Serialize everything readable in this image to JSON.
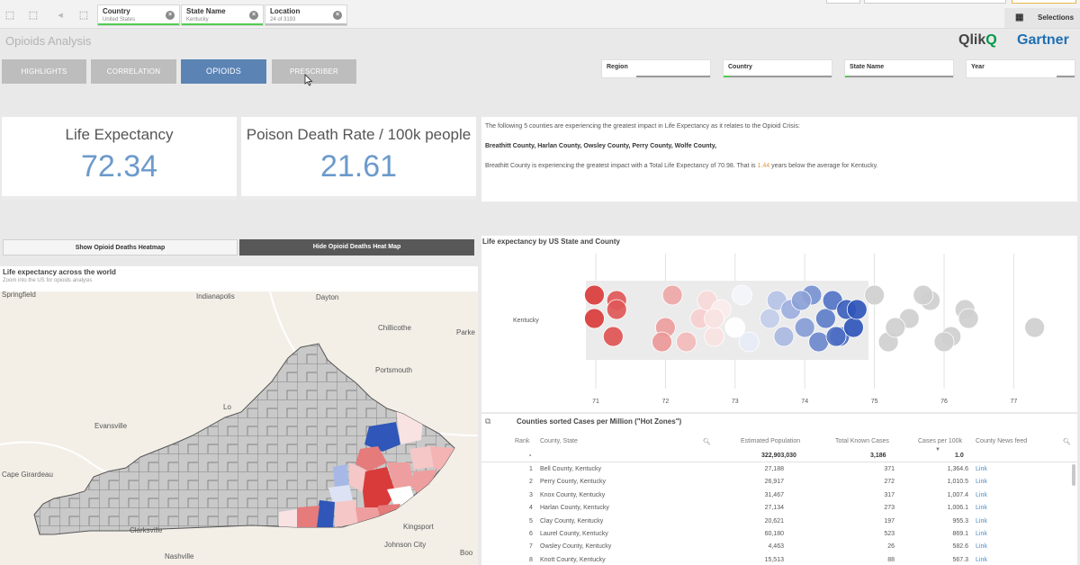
{
  "toolbar": {
    "filters": [
      {
        "label": "Country",
        "value": "United States"
      },
      {
        "label": "State Name",
        "value": "Kentucky"
      },
      {
        "label": "Location",
        "value": "24 of 3193"
      }
    ],
    "selections_label": "Selections"
  },
  "app": {
    "title": "Opioids Analysis"
  },
  "logos": {
    "qlik": "Qlik",
    "qlik_mark": "Q",
    "gartner": "Gartner"
  },
  "nav": {
    "tabs": [
      "HIGHLIGHTS",
      "CORRELATION",
      "OPIOIDS",
      "PRESCRIBER"
    ],
    "active_tab": "OPIOIDS"
  },
  "dropdowns": [
    "Region",
    "Country",
    "State Name",
    "Year"
  ],
  "kpis": {
    "life_expectancy": {
      "title": "Life Expectancy",
      "value": "72.34"
    },
    "poison_death_rate": {
      "title": "Poison Death Rate / 100k people",
      "value": "21.61"
    }
  },
  "insight": {
    "line1": "The following 5 counties are experiencing the greatest impact in Life Expectancy as it relates to the Opioid Crisis:",
    "line2": "Breathitt County, Harlan County, Owsley County, Perry County, Wolfe County,",
    "line3_pre": "Breathitt County is experiencing the greatest impact with a Total Life Expectancy of 70.98. That is",
    "line3_highlight": "1.44",
    "line3_post": "years below the average for Kentucky."
  },
  "toggles": {
    "show": "Show Opioid Deaths Heatmap",
    "hide": "Hide Opioid Deaths Heat Map"
  },
  "map": {
    "title": "Life expectancy across the world",
    "subtitle": "Zoom into the US for opioids analysis",
    "places": [
      "Springfield",
      "Indianapolis",
      "Dayton",
      "Chillicothe",
      "Parke",
      "Portsmouth",
      "Lo",
      "Evansville",
      "Cape Girardeau",
      "Clarksville",
      "Kingsport",
      "Johnson City",
      "Nashville",
      "Boo"
    ],
    "colors": {
      "low": "#d93b3b",
      "mid": "#ffffff",
      "high": "#2f56b8",
      "neutral": "#c9c9c9",
      "land": "#f3efe7"
    }
  },
  "bubble": {
    "title": "Life expectancy by US State and County",
    "row_label": "Kentucky",
    "ticks": [
      "71",
      "72",
      "73",
      "74",
      "75",
      "76",
      "77"
    ],
    "chart_data": {
      "type": "scatter",
      "title": "Life expectancy by US State and County",
      "xlabel": "",
      "ylabel": "",
      "xlim": [
        70.5,
        77.5
      ],
      "categories": [
        "Kentucky"
      ],
      "values": [
        70.98,
        71.3,
        71.25,
        71.3,
        72.0,
        72.1,
        72.3,
        72.5,
        72.6,
        72.7,
        72.8,
        73.0,
        73.1,
        73.2,
        73.5,
        73.6,
        73.7,
        73.8,
        74.0,
        74.1,
        74.2,
        74.3,
        74.4,
        74.5,
        74.6,
        74.7,
        75.0,
        75.2,
        75.5,
        75.8,
        76.1,
        76.3,
        77.3,
        70.98,
        71.95,
        72.7,
        73.95,
        74.45,
        74.75,
        75.3,
        75.7,
        76.0,
        76.35
      ]
    }
  },
  "table": {
    "title": "Counties sorted Cases per Million (\"Hot Zones\")",
    "headers": {
      "rank": "Rank",
      "county": "County, State",
      "population": "Estimated Population",
      "cases": "Total Known Cases",
      "per100k": "Cases per 100k",
      "news": "County News feed"
    },
    "total": {
      "rank": "-",
      "population": "322,903,030",
      "cases": "3,186",
      "per100k": "1.0"
    },
    "rows": [
      {
        "rank": "1",
        "county": "Bell County, Kentucky",
        "population": "27,188",
        "cases": "371",
        "per100k": "1,364.6",
        "news": "Link"
      },
      {
        "rank": "2",
        "county": "Perry County, Kentucky",
        "population": "26,917",
        "cases": "272",
        "per100k": "1,010.5",
        "news": "Link"
      },
      {
        "rank": "3",
        "county": "Knox County, Kentucky",
        "population": "31,467",
        "cases": "317",
        "per100k": "1,007.4",
        "news": "Link"
      },
      {
        "rank": "4",
        "county": "Harlan County, Kentucky",
        "population": "27,134",
        "cases": "273",
        "per100k": "1,006.1",
        "news": "Link"
      },
      {
        "rank": "5",
        "county": "Clay County, Kentucky",
        "population": "20,621",
        "cases": "197",
        "per100k": "955.3",
        "news": "Link"
      },
      {
        "rank": "6",
        "county": "Laurel County, Kentucky",
        "population": "60,180",
        "cases": "523",
        "per100k": "869.1",
        "news": "Link"
      },
      {
        "rank": "7",
        "county": "Owsley County, Kentucky",
        "population": "4,463",
        "cases": "26",
        "per100k": "582.6",
        "news": "Link"
      },
      {
        "rank": "8",
        "county": "Knott County, Kentucky",
        "population": "15,513",
        "cases": "88",
        "per100k": "567.3",
        "news": "Link"
      }
    ]
  }
}
